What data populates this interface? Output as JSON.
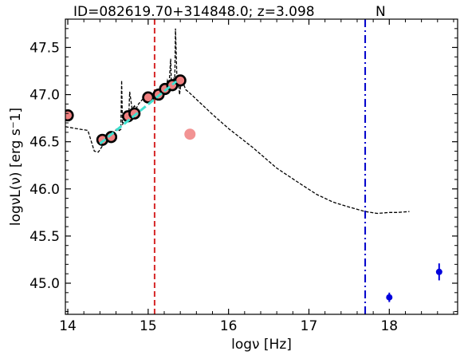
{
  "chart_data": {
    "type": "scatter",
    "title": "ID=082619.70+314848.0; z=3.098",
    "title_flag": "N",
    "xlabel": "logν [Hz]",
    "ylabel": "logνL(ν) [erg s⁻1]",
    "xlim": [
      13.97,
      18.85
    ],
    "ylim": [
      44.67,
      47.8
    ],
    "x_ticks": [
      "14",
      "15",
      "16",
      "17",
      "18"
    ],
    "x_tick_values": [
      14,
      15,
      16,
      17,
      18
    ],
    "y_ticks": [
      "45.0",
      "45.5",
      "46.0",
      "46.5",
      "47.0",
      "47.5"
    ],
    "y_tick_values": [
      45.0,
      45.5,
      46.0,
      46.5,
      47.0,
      47.5
    ],
    "grid": false,
    "colors": {
      "photometry_fill": "#f08080",
      "photometry_edge": "#000000",
      "fit_line": "#40e0d0",
      "template_line": "#000000",
      "vline_red": "#d62728",
      "vline_blue": "#0000cc",
      "xray_points": "#0000dd"
    },
    "series": [
      {
        "name": "",
        "kind": "photometry",
        "x": [
          14.0,
          14.43,
          14.54,
          14.75,
          14.83,
          15.0,
          15.13,
          15.21,
          15.3,
          15.4
        ],
        "y": [
          46.78,
          46.52,
          46.55,
          46.77,
          46.8,
          46.97,
          47.0,
          47.06,
          47.1,
          47.15
        ]
      },
      {
        "name": "",
        "kind": "outlier_photometry",
        "x": [
          15.52
        ],
        "y": [
          46.58
        ]
      },
      {
        "name": "",
        "kind": "powerlaw_fit",
        "x": [
          14.4,
          15.35
        ],
        "y": [
          46.48,
          47.14
        ]
      },
      {
        "name": "",
        "kind": "sed_template",
        "x": [
          13.97,
          14.1,
          14.25,
          14.33,
          14.38,
          14.45,
          14.5,
          14.55,
          14.58,
          14.6,
          14.62,
          14.64,
          14.66,
          14.67,
          14.68,
          14.7,
          14.72,
          14.74,
          14.76,
          14.77,
          14.8,
          14.83,
          14.85,
          14.88,
          14.9,
          14.93,
          14.95,
          14.98,
          15.0,
          15.02,
          15.05,
          15.08,
          15.1,
          15.13,
          15.15,
          15.18,
          15.2,
          15.22,
          15.24,
          15.26,
          15.28,
          15.29,
          15.3,
          15.32,
          15.33,
          15.34,
          15.36,
          15.38,
          15.39,
          15.41,
          15.43,
          15.45,
          15.47,
          15.5,
          15.6,
          15.8,
          16.0,
          16.3,
          16.6,
          16.9,
          17.1,
          17.3,
          17.45,
          17.7,
          17.85,
          18.0,
          18.1,
          18.25
        ],
        "y": [
          46.66,
          46.64,
          46.62,
          46.4,
          46.39,
          46.48,
          46.55,
          46.58,
          46.6,
          46.63,
          46.64,
          46.62,
          46.63,
          47.15,
          46.68,
          46.73,
          46.78,
          46.82,
          46.8,
          47.03,
          46.85,
          46.88,
          46.85,
          46.9,
          46.92,
          46.95,
          46.97,
          46.98,
          47.0,
          47.02,
          47.01,
          46.98,
          47.03,
          47.05,
          47.04,
          47.08,
          47.07,
          47.06,
          47.15,
          47.1,
          47.38,
          47.08,
          47.12,
          47.18,
          47.08,
          47.7,
          47.1,
          47.12,
          47.0,
          47.13,
          47.15,
          47.09,
          47.05,
          47.03,
          46.95,
          46.79,
          46.64,
          46.44,
          46.22,
          46.05,
          45.94,
          45.86,
          45.82,
          45.76,
          45.74,
          45.75,
          45.75,
          45.76
        ]
      },
      {
        "name": "",
        "kind": "xray",
        "x": [
          18.0,
          18.62
        ],
        "y": [
          44.85,
          45.12
        ],
        "yerr": [
          0.05,
          0.09
        ]
      }
    ],
    "vlines": [
      {
        "x": 15.08,
        "style": "dashed",
        "color": "red"
      },
      {
        "x": 17.7,
        "style": "dashdot",
        "color": "blue"
      }
    ]
  }
}
